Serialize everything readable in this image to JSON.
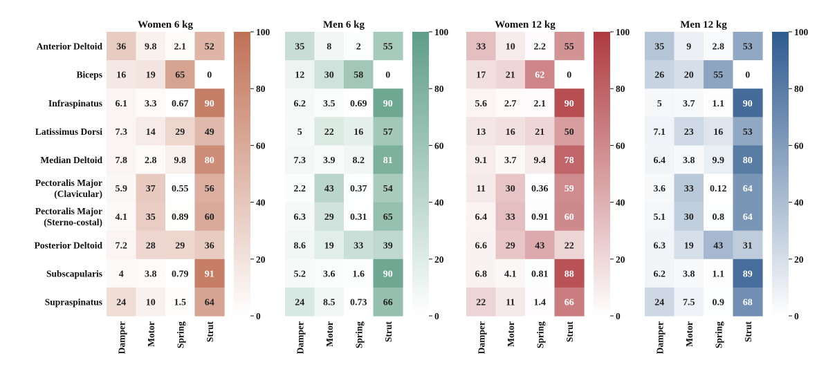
{
  "chart_data": {
    "type": "heatmap",
    "rows": [
      "Anterior Deltoid",
      "Biceps",
      "Infraspinatus",
      "Latissimus Dorsi",
      "Median Deltoid",
      "Pectoralis Major\n(Clavicular)",
      "Pectoralis Major\n(Sterno-costal)",
      "Posterior Deltoid",
      "Subscapularis",
      "Supraspinatus"
    ],
    "columns": [
      "Damper",
      "Motor",
      "Spring",
      "Strut"
    ],
    "colorbar": {
      "range": [
        0,
        100
      ],
      "ticks": [
        "0",
        "20",
        "40",
        "60",
        "80",
        "100"
      ]
    },
    "panels": [
      {
        "title": "Women 6 kg",
        "color": "#c07156",
        "values": [
          [
            "36",
            "9.8",
            "2.1",
            "52"
          ],
          [
            "16",
            "19",
            "65",
            "0"
          ],
          [
            "6.1",
            "3.3",
            "0.67",
            "90"
          ],
          [
            "7.3",
            "14",
            "29",
            "49"
          ],
          [
            "7.8",
            "2.8",
            "9.8",
            "80"
          ],
          [
            "5.9",
            "37",
            "0.55",
            "56"
          ],
          [
            "4.1",
            "35",
            "0.89",
            "60"
          ],
          [
            "7.2",
            "28",
            "29",
            "36"
          ],
          [
            "4",
            "3.8",
            "0.79",
            "91"
          ],
          [
            "24",
            "10",
            "1.5",
            "64"
          ]
        ]
      },
      {
        "title": "Men 6 kg",
        "color": "#5e9e86",
        "values": [
          [
            "35",
            "8",
            "2",
            "55"
          ],
          [
            "12",
            "30",
            "58",
            "0"
          ],
          [
            "6.2",
            "3.5",
            "0.69",
            "90"
          ],
          [
            "5",
            "22",
            "16",
            "57"
          ],
          [
            "7.3",
            "3.9",
            "8.2",
            "81"
          ],
          [
            "2.2",
            "43",
            "0.37",
            "54"
          ],
          [
            "6.3",
            "29",
            "0.31",
            "65"
          ],
          [
            "8.6",
            "19",
            "33",
            "39"
          ],
          [
            "5.2",
            "3.6",
            "1.6",
            "90"
          ],
          [
            "24",
            "8.5",
            "0.73",
            "66"
          ]
        ]
      },
      {
        "title": "Women 12 kg",
        "color": "#ae3a3f",
        "values": [
          [
            "33",
            "10",
            "2.2",
            "55"
          ],
          [
            "17",
            "21",
            "62",
            "0"
          ],
          [
            "5.6",
            "2.7",
            "2.1",
            "90"
          ],
          [
            "13",
            "16",
            "21",
            "50"
          ],
          [
            "9.1",
            "3.7",
            "9.4",
            "78"
          ],
          [
            "11",
            "30",
            "0.36",
            "59"
          ],
          [
            "6.4",
            "33",
            "0.91",
            "60"
          ],
          [
            "6.6",
            "29",
            "43",
            "22"
          ],
          [
            "6.8",
            "4.1",
            "0.81",
            "88"
          ],
          [
            "22",
            "11",
            "1.4",
            "66"
          ]
        ]
      },
      {
        "title": "Men 12 kg",
        "color": "#2f5b8f",
        "values": [
          [
            "35",
            "9",
            "2.8",
            "53"
          ],
          [
            "26",
            "20",
            "55",
            "0"
          ],
          [
            "5",
            "3.7",
            "1.1",
            "90"
          ],
          [
            "7.1",
            "23",
            "16",
            "53"
          ],
          [
            "6.4",
            "3.8",
            "9.9",
            "80"
          ],
          [
            "3.6",
            "33",
            "0.12",
            "64"
          ],
          [
            "5.1",
            "30",
            "0.8",
            "64"
          ],
          [
            "6.3",
            "19",
            "43",
            "31"
          ],
          [
            "6.2",
            "3.8",
            "1.1",
            "89"
          ],
          [
            "24",
            "7.5",
            "0.9",
            "68"
          ]
        ]
      }
    ]
  }
}
